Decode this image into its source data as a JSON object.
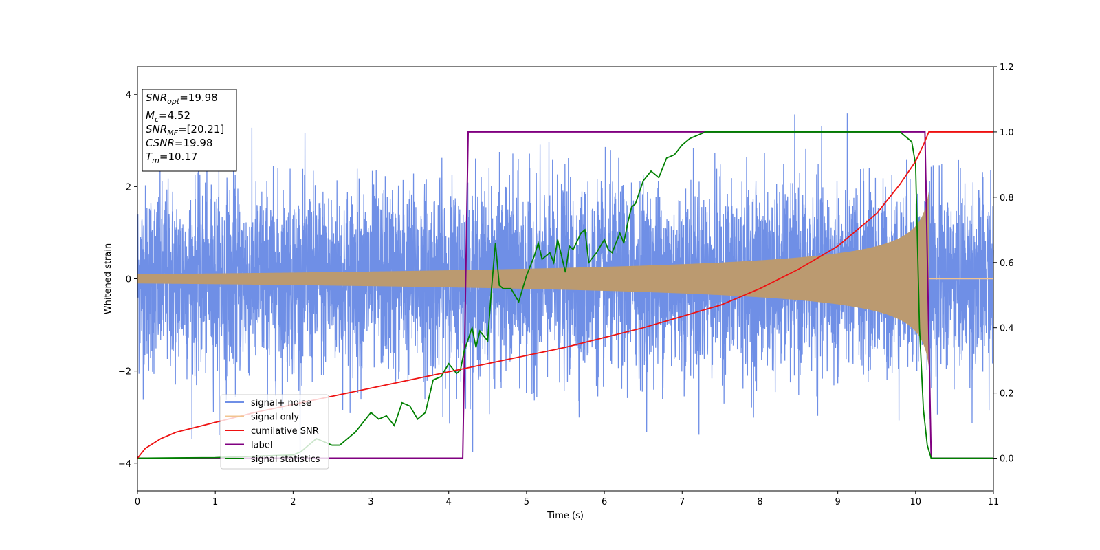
{
  "chart_data": {
    "type": "line",
    "title": "",
    "xlabel": "Time (s)",
    "ylabel": "Whitened strain",
    "xlim": [
      0,
      11
    ],
    "ylim": [
      -4.6,
      4.6
    ],
    "y2lim": [
      -0.1,
      1.2
    ],
    "xticks": [
      0,
      1,
      2,
      3,
      4,
      5,
      6,
      7,
      8,
      9,
      10,
      11
    ],
    "yticks": [
      -4,
      -2,
      0,
      2,
      4
    ],
    "y2ticks": [
      "0.0",
      "0.2",
      "0.4",
      "0.6",
      "0.8",
      "1.0",
      "1.2"
    ],
    "grid": false,
    "legend_position": "lower-left",
    "info_box": {
      "snr_opt": {
        "sym": "SNR",
        "sub": "opt",
        "value": "=19.98"
      },
      "mc": {
        "sym": "M",
        "sub": "c",
        "value": "=4.52"
      },
      "snr_mf": {
        "sym": "SNR",
        "sub": "MF",
        "value": "=[20.21]"
      },
      "csnr": {
        "sym": "CSNR",
        "sub": "",
        "value": "=19.98"
      },
      "tm": {
        "sym": "T",
        "sub": "m",
        "value": "=10.17"
      }
    },
    "noise": {
      "name": "signal+ noise",
      "color": "#6f8fe6",
      "sigma": 1.0,
      "t_end": 11,
      "samples": 5500
    },
    "signal_only": {
      "name": "signal only",
      "color": "#f2c48f",
      "fill_color": "#bb9a70",
      "t_start": 0,
      "t_merge": 10.17,
      "amp_start": 0.1,
      "amp_end": 1.9
    },
    "cumulative_snr": {
      "name": "cumilative SNR",
      "color": "#ee1111",
      "axis": "right",
      "x": [
        0,
        0.1,
        0.3,
        0.5,
        1,
        1.5,
        2,
        2.5,
        3,
        3.5,
        4,
        4.5,
        5,
        5.5,
        6,
        6.5,
        7,
        7.5,
        8,
        8.5,
        9,
        9.5,
        9.8,
        10,
        10.1,
        10.17,
        11
      ],
      "values": [
        0.0,
        0.03,
        0.06,
        0.08,
        0.11,
        0.14,
        0.165,
        0.19,
        0.215,
        0.24,
        0.265,
        0.29,
        0.315,
        0.34,
        0.37,
        0.4,
        0.435,
        0.47,
        0.52,
        0.58,
        0.65,
        0.75,
        0.84,
        0.91,
        0.96,
        1.0,
        1.0
      ]
    },
    "label": {
      "name": "label",
      "color": "#800080",
      "axis": "right",
      "x": [
        0,
        4.18,
        4.25,
        10.12,
        10.2,
        11
      ],
      "values": [
        0,
        0,
        1,
        1,
        0,
        0
      ]
    },
    "signal_statistics": {
      "name": "signal statistics",
      "color": "#008000",
      "axis": "right",
      "x": [
        0,
        1,
        2,
        2.1,
        2.2,
        2.3,
        2.4,
        2.5,
        2.6,
        2.7,
        2.8,
        2.9,
        3.0,
        3.1,
        3.2,
        3.3,
        3.4,
        3.5,
        3.6,
        3.7,
        3.8,
        3.9,
        4.0,
        4.1,
        4.15,
        4.2,
        4.3,
        4.35,
        4.4,
        4.5,
        4.55,
        4.6,
        4.65,
        4.7,
        4.8,
        4.9,
        5.0,
        5.1,
        5.15,
        5.2,
        5.3,
        5.35,
        5.4,
        5.5,
        5.55,
        5.6,
        5.7,
        5.75,
        5.8,
        5.9,
        6.0,
        6.05,
        6.1,
        6.2,
        6.25,
        6.3,
        6.35,
        6.4,
        6.5,
        6.6,
        6.7,
        6.8,
        6.9,
        7.0,
        7.1,
        7.2,
        7.3,
        7.4,
        7.5,
        8.0,
        8.5,
        9.0,
        9.5,
        9.8,
        9.95,
        10.0,
        10.05,
        10.1,
        10.15,
        10.2,
        10.5,
        11
      ],
      "values": [
        0,
        0.002,
        0.01,
        0.02,
        0.04,
        0.06,
        0.05,
        0.04,
        0.04,
        0.06,
        0.08,
        0.11,
        0.14,
        0.12,
        0.13,
        0.1,
        0.17,
        0.16,
        0.12,
        0.14,
        0.24,
        0.25,
        0.29,
        0.26,
        0.27,
        0.33,
        0.4,
        0.34,
        0.39,
        0.36,
        0.52,
        0.66,
        0.53,
        0.52,
        0.52,
        0.48,
        0.56,
        0.62,
        0.66,
        0.61,
        0.63,
        0.6,
        0.67,
        0.57,
        0.65,
        0.64,
        0.69,
        0.7,
        0.6,
        0.63,
        0.67,
        0.64,
        0.63,
        0.69,
        0.66,
        0.72,
        0.77,
        0.78,
        0.85,
        0.88,
        0.86,
        0.92,
        0.93,
        0.96,
        0.98,
        0.99,
        1.0,
        1.0,
        1.0,
        1.0,
        1.0,
        1.0,
        1.0,
        1.0,
        0.97,
        0.9,
        0.4,
        0.15,
        0.04,
        0.0,
        0.0,
        0.0
      ]
    }
  }
}
